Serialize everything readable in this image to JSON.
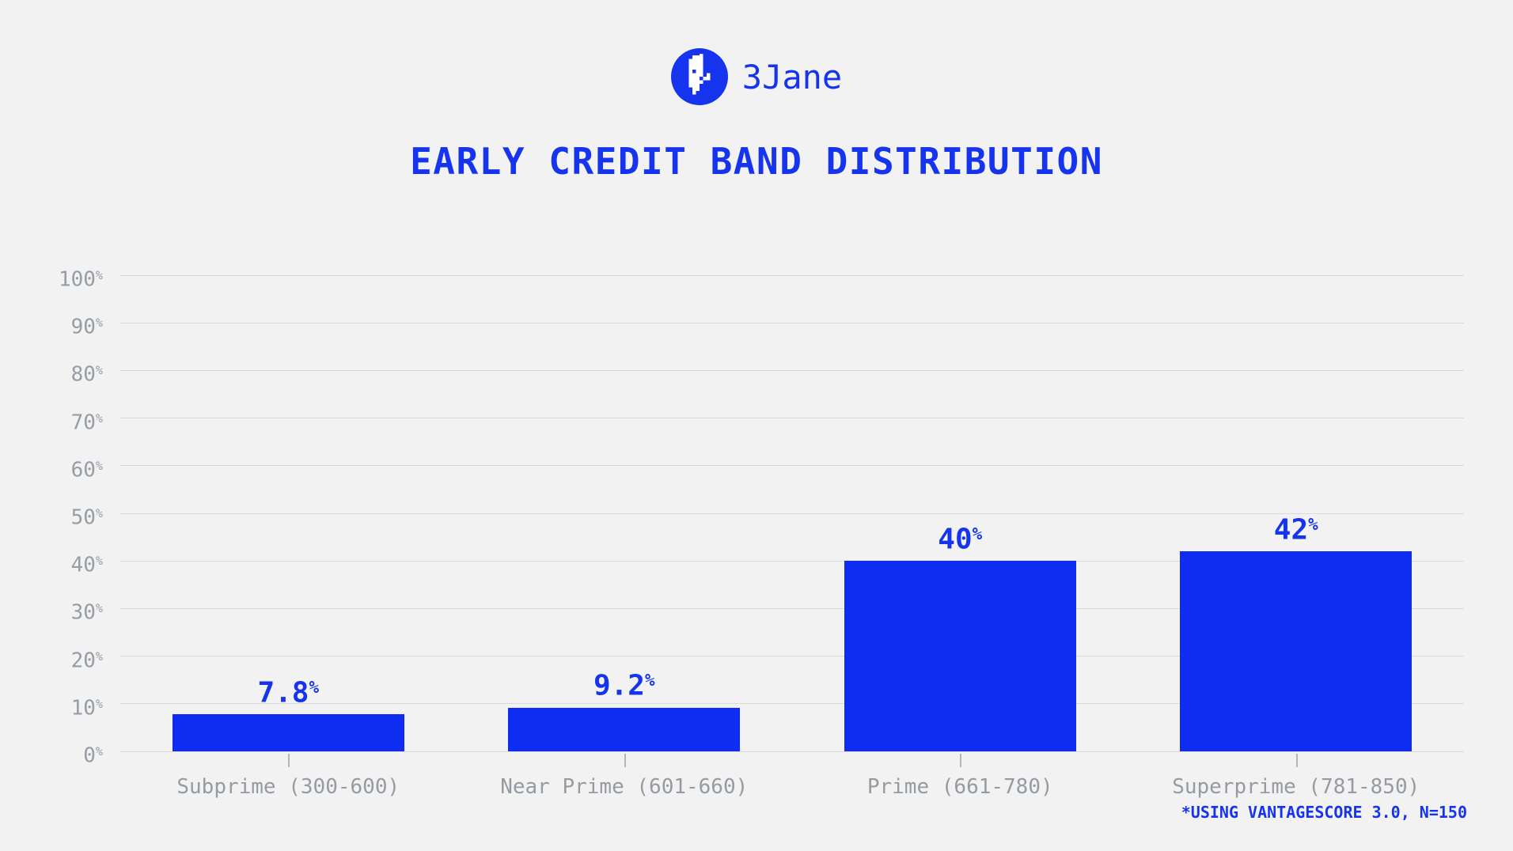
{
  "header": {
    "brand": "3Jane"
  },
  "footnote": "*USING VANTAGESCORE 3.0, N=150",
  "colors": {
    "accent_blue": "#1634EE",
    "bar_blue": "#0E2DF1",
    "background": "#F2F2F2",
    "gridline": "#D9D9D9",
    "axis_text": "#979DA5"
  },
  "chart_data": {
    "type": "bar",
    "title": "EARLY CREDIT BAND DISTRIBUTION",
    "categories": [
      "Subprime (300-600)",
      "Near Prime (601-660)",
      "Prime (661-780)",
      "Superprime (781-850)"
    ],
    "values": [
      7.8,
      9.2,
      40,
      42
    ],
    "value_labels": [
      "7.8%",
      "9.2%",
      "40%",
      "42%"
    ],
    "y_ticks": [
      "100%",
      "90%",
      "80%",
      "70%",
      "60%",
      "50%",
      "40%",
      "30%",
      "20%",
      "10%",
      "0%"
    ],
    "ylim": [
      0,
      100
    ],
    "xlabel": "",
    "ylabel": "",
    "grid": true,
    "legend": false,
    "annotation": "*USING VANTAGESCORE 3.0, N=150"
  }
}
